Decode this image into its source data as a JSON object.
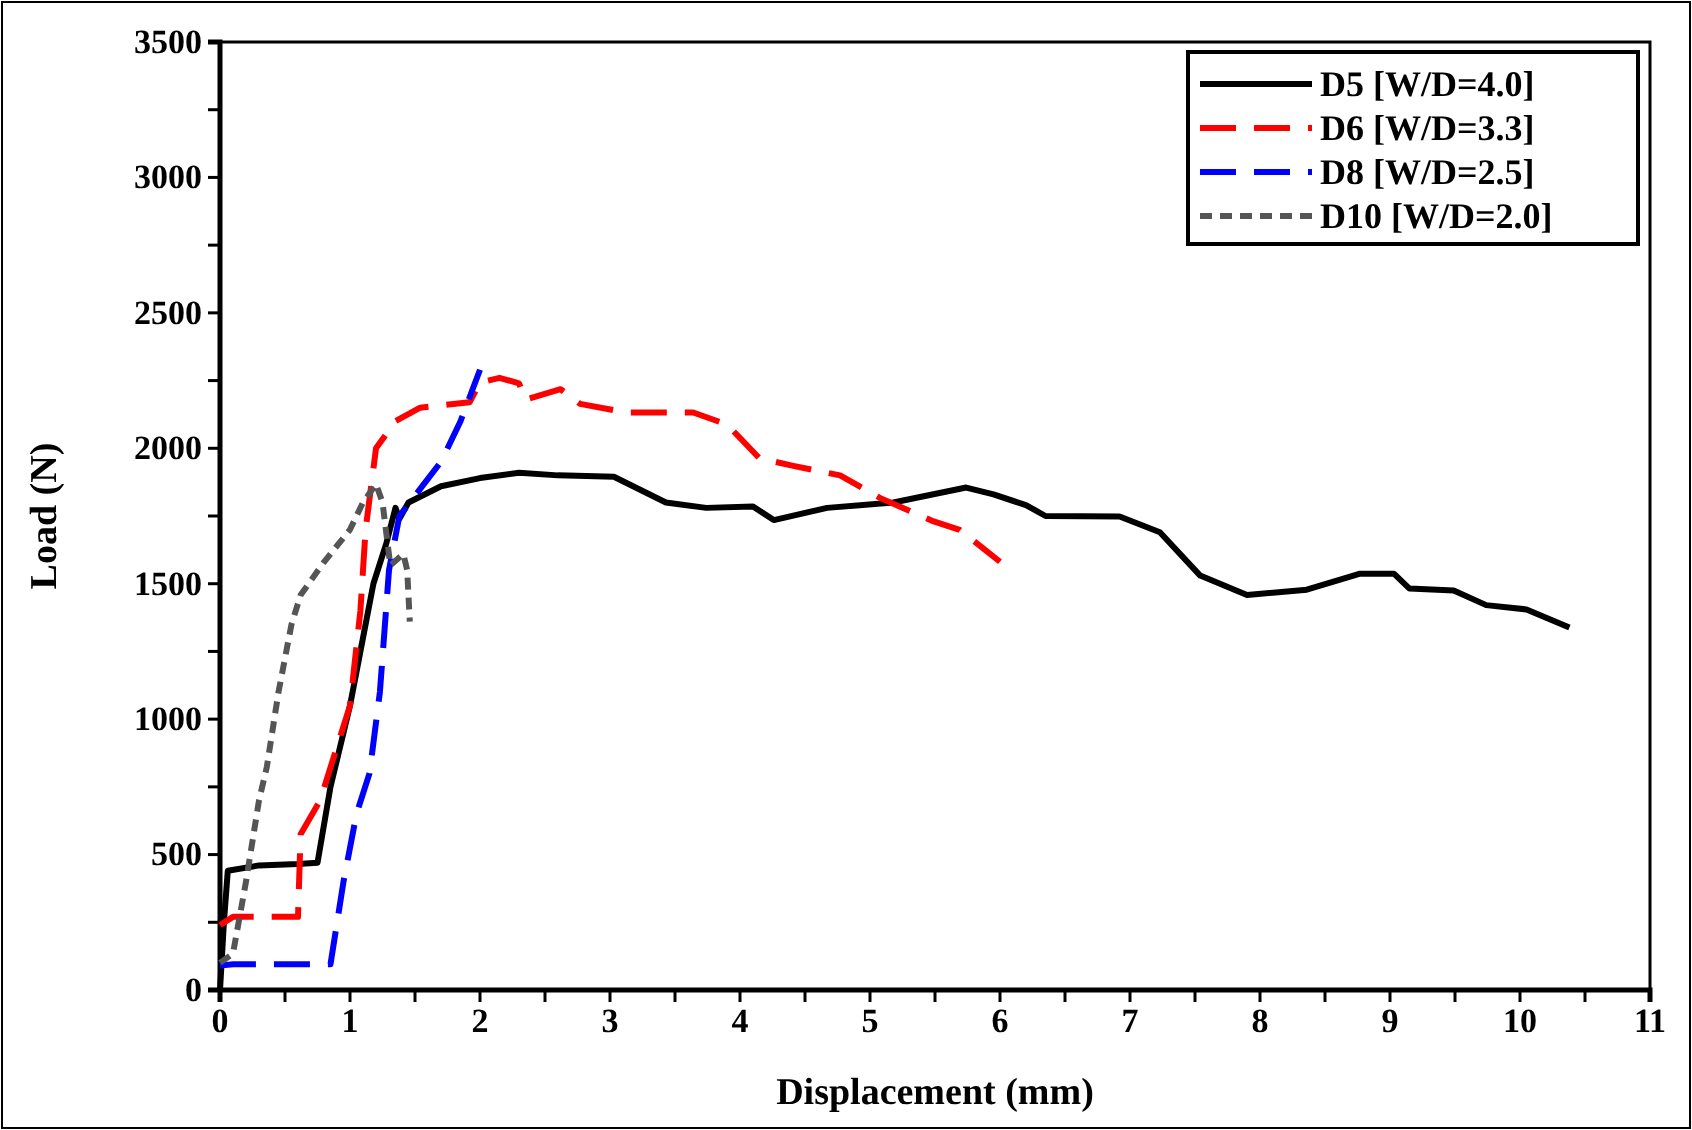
{
  "chart_data": {
    "type": "line",
    "xlabel": "Displacement (mm)",
    "ylabel": "Load (N)",
    "xlim": [
      0,
      11
    ],
    "ylim": [
      0,
      3500
    ],
    "xticks": [
      0,
      {
        "value": 0.5,
        "label": null
      },
      1,
      {
        "value": 1.5,
        "label": null
      },
      2,
      {
        "value": 2.5,
        "label": null
      },
      3,
      {
        "value": 3.5,
        "label": null
      },
      4,
      {
        "value": 4.5,
        "label": null
      },
      5,
      {
        "value": 5.5,
        "label": null
      },
      6,
      {
        "value": 6.5,
        "label": null
      },
      7,
      {
        "value": 7.5,
        "label": null
      },
      8,
      {
        "value": 8.5,
        "label": null
      },
      9,
      {
        "value": 9.5,
        "label": null
      },
      10,
      {
        "value": 10.5,
        "label": null
      },
      11
    ],
    "yticks": [
      0,
      {
        "value": 250,
        "label": null
      },
      500,
      {
        "value": 750,
        "label": null
      },
      1000,
      {
        "value": 1250,
        "label": null
      },
      1500,
      {
        "value": 1750,
        "label": null
      },
      2000,
      {
        "value": 2250,
        "label": null
      },
      2500,
      {
        "value": 2750,
        "label": null
      },
      3000,
      {
        "value": 3250,
        "label": null
      },
      3500
    ],
    "grid": false,
    "legend": "top right",
    "marker": "none",
    "series": [
      {
        "name": "D5 [W/D=4.0]",
        "color": "#000000",
        "line_style": "solid",
        "x": [
          0,
          0.03,
          0.06,
          0.3,
          0.6,
          0.75,
          0.85,
          1.0,
          1.1,
          1.18,
          1.28,
          1.35,
          1.38,
          1.45,
          1.7,
          2.0,
          2.3,
          2.6,
          3.03,
          3.43,
          3.74,
          4.1,
          4.26,
          4.67,
          5.18,
          5.74,
          5.95,
          6.2,
          6.35,
          6.92,
          7.23,
          7.54,
          7.9,
          8.36,
          8.77,
          9.03,
          9.15,
          9.49,
          9.74,
          10.05,
          10.38
        ],
        "values": [
          0,
          250,
          440,
          460,
          465,
          470,
          750,
          1050,
          1300,
          1500,
          1650,
          1780,
          1740,
          1800,
          1860,
          1890,
          1910,
          1900,
          1895,
          1800,
          1780,
          1785,
          1735,
          1780,
          1800,
          1855,
          1830,
          1790,
          1750,
          1748,
          1690,
          1530,
          1458,
          1478,
          1537,
          1537,
          1482,
          1475,
          1421,
          1405,
          1338
        ]
      },
      {
        "name": "D6 [W/D=3.3]",
        "color": "#ff0000",
        "line_style": "dashed",
        "x": [
          0,
          0.1,
          0.4,
          0.6,
          0.62,
          0.77,
          1.0,
          1.08,
          1.12,
          1.2,
          1.35,
          1.54,
          1.92,
          2.0,
          2.15,
          2.3,
          2.35,
          2.62,
          2.77,
          3.13,
          3.64,
          3.9,
          4.15,
          4.41,
          4.77,
          5.08,
          5.49,
          5.69,
          6.0
        ],
        "values": [
          240,
          270,
          270,
          270,
          575,
          700,
          1050,
          1400,
          1700,
          2000,
          2100,
          2150,
          2170,
          2243,
          2260,
          2240,
          2180,
          2218,
          2164,
          2132,
          2132,
          2088,
          1963,
          1935,
          1900,
          1816,
          1730,
          1699,
          1581
        ]
      },
      {
        "name": "D8 [W/D=2.5]",
        "color": "#0000ff",
        "line_style": "dashed",
        "x": [
          0,
          0.1,
          0.5,
          0.85,
          0.95,
          1.05,
          1.15,
          1.23,
          1.3,
          1.38,
          1.54,
          1.7,
          1.85,
          2.0
        ],
        "values": [
          90,
          95,
          95,
          95,
          400,
          650,
          800,
          1100,
          1550,
          1750,
          1850,
          1950,
          2100,
          2290
        ]
      },
      {
        "name": "D10 [W/D=2.0]",
        "color": "#555555",
        "line_style": "dotted",
        "x": [
          0,
          0.1,
          0.2,
          0.3,
          0.36,
          0.45,
          0.55,
          0.62,
          0.8,
          1.0,
          1.1,
          1.2,
          1.25,
          1.31,
          1.41,
          1.44,
          1.46
        ],
        "values": [
          100,
          135,
          400,
          700,
          823,
          1100,
          1350,
          1458,
          1580,
          1700,
          1800,
          1868,
          1800,
          1568,
          1610,
          1550,
          1360
        ]
      }
    ]
  }
}
